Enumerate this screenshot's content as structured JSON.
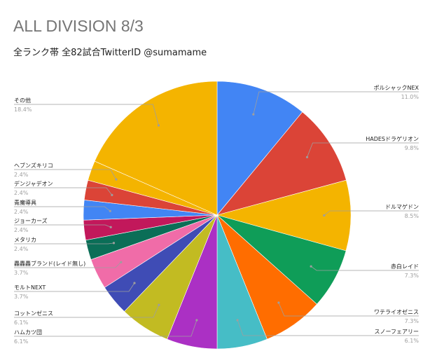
{
  "chart_data": {
    "type": "pie",
    "title": "ALL DIVISION 8/3",
    "subtitle": "全ランク帯 全82試合TwitterID @sumamame",
    "slices": [
      {
        "label": "ポルシャックNEX",
        "value": 11.0,
        "pct": "11.0%",
        "color": "#4285f4"
      },
      {
        "label": "HADESドラゲリオン",
        "value": 9.8,
        "pct": "9.8%",
        "color": "#db4437"
      },
      {
        "label": "ドルマゲドン",
        "value": 8.5,
        "pct": "8.5%",
        "color": "#f4b400"
      },
      {
        "label": "赤白レイド",
        "value": 7.3,
        "pct": "7.3%",
        "color": "#0f9d58"
      },
      {
        "label": "ワテライオゼニス",
        "value": 7.3,
        "pct": "7.3%",
        "color": "#ff6d00"
      },
      {
        "label": "スノーフェアリー",
        "value": 6.1,
        "pct": "6.1%",
        "color": "#46bdc6"
      },
      {
        "label": "ハムカツ団",
        "value": 6.1,
        "pct": "6.1%",
        "color": "#ab30c4"
      },
      {
        "label": "コットンゼニス",
        "value": 6.1,
        "pct": "6.1%",
        "color": "#c2bb22"
      },
      {
        "label": "モルトNEXT",
        "value": 3.7,
        "pct": "3.7%",
        "color": "#3f4cb5"
      },
      {
        "label": "轟轟轟ブランド(レイド無し)",
        "value": 3.7,
        "pct": "3.7%",
        "color": "#f06ca8"
      },
      {
        "label": "メタリカ",
        "value": 2.4,
        "pct": "2.4%",
        "color": "#0b6e57"
      },
      {
        "label": "ジョーカーズ",
        "value": 2.4,
        "pct": "2.4%",
        "color": "#c2185b"
      },
      {
        "label": "青魔導具",
        "value": 2.4,
        "pct": "2.4%",
        "color": "#4285f4"
      },
      {
        "label": "デンジャデオン",
        "value": 2.4,
        "pct": "2.4%",
        "color": "#db4437"
      },
      {
        "label": "ヘブンズキリコ",
        "value": 2.4,
        "pct": "2.4%",
        "color": "#f4b400"
      },
      {
        "label": "その他",
        "value": 18.4,
        "pct": "18.4%",
        "color": "#f4b400"
      }
    ]
  }
}
